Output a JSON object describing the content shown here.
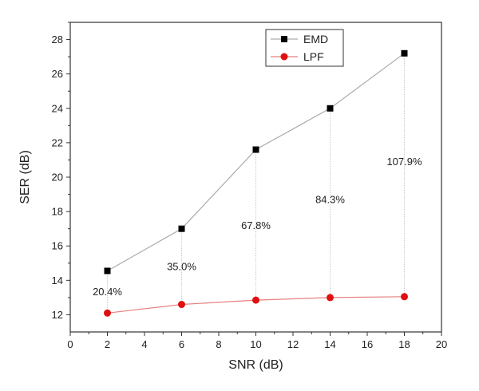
{
  "chart_data": {
    "type": "line",
    "xlabel": "SNR (dB)",
    "ylabel": "SER (dB)",
    "xlim": [
      0,
      20
    ],
    "ylim": [
      11,
      29
    ],
    "xticks": [
      0,
      2,
      4,
      6,
      8,
      10,
      12,
      14,
      16,
      18,
      20
    ],
    "yticks": [
      12,
      14,
      16,
      18,
      20,
      22,
      24,
      26,
      28
    ],
    "grid": false,
    "legend_position": "top-right",
    "series": [
      {
        "name": "EMD",
        "color": "#000000",
        "marker": "square",
        "line_color": "#aaaaaa",
        "x": [
          2,
          6,
          10,
          14,
          18
        ],
        "y": [
          14.55,
          17.0,
          21.6,
          24.0,
          27.2
        ]
      },
      {
        "name": "LPF",
        "color": "#e01010",
        "marker": "circle",
        "line_color": "#e88080",
        "x": [
          2,
          6,
          10,
          14,
          18
        ],
        "y": [
          12.1,
          12.6,
          12.85,
          13.0,
          13.05
        ]
      }
    ],
    "annotations": [
      {
        "text": "20.4%",
        "x": 2,
        "y": 13.35
      },
      {
        "text": "35.0%",
        "x": 6,
        "y": 14.8
      },
      {
        "text": "67.8%",
        "x": 10,
        "y": 17.2
      },
      {
        "text": "84.3%",
        "x": 14,
        "y": 18.7
      },
      {
        "text": "107.9%",
        "x": 18,
        "y": 20.9
      }
    ]
  }
}
